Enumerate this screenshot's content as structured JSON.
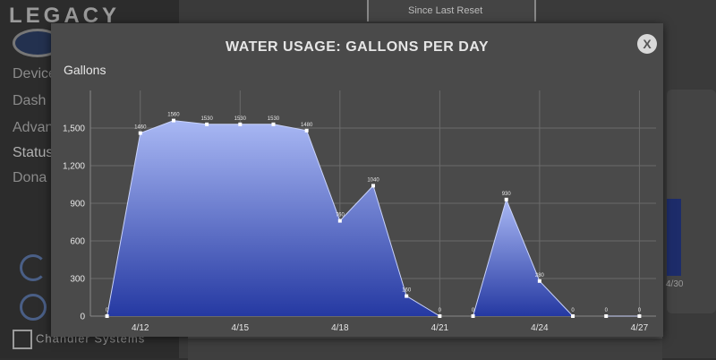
{
  "background": {
    "logo_text": "LEGACY",
    "nav": [
      "Device",
      "Dash",
      "Advan",
      "Status",
      "Dona"
    ],
    "header": "Since Last Reset",
    "right_label": "4/30",
    "brand": "Chandler Systems"
  },
  "modal": {
    "title": "WATER USAGE: GALLONS PER DAY",
    "close_label": "X",
    "yaxis_title": "Gallons"
  },
  "chart_data": {
    "type": "area",
    "ylabel": "Gallons",
    "ylim": [
      0,
      1800
    ],
    "yticks": [
      0,
      300,
      600,
      900,
      1200,
      1500
    ],
    "ytick_labels": [
      "0",
      "300",
      "600",
      "900",
      "1,200",
      "1,500"
    ],
    "xticks": [
      "4/12",
      "4/15",
      "4/18",
      "4/21",
      "4/24",
      "4/27"
    ],
    "xtick_positions": [
      12,
      15,
      18,
      21,
      24,
      27
    ],
    "x_range": [
      10.5,
      27.5
    ],
    "grid": true,
    "colors": {
      "area_top": "#a9b8f4",
      "area_bottom": "#2539a2",
      "grid": "#6a6a6a",
      "axis": "#888888"
    },
    "series": [
      {
        "segment": 1,
        "x": [
          11,
          12,
          13,
          14,
          15,
          16,
          17,
          18,
          19,
          20,
          21
        ],
        "values": [
          0,
          1460,
          1560,
          1530,
          1530,
          1530,
          1480,
          760,
          1040,
          160,
          0
        ],
        "labels": [
          "0",
          "1460",
          "1560",
          "1530",
          "1530",
          "1530",
          "1480",
          "760",
          "1040",
          "160",
          "0"
        ]
      },
      {
        "segment": 2,
        "x": [
          22,
          23,
          24,
          25
        ],
        "values": [
          0,
          930,
          280,
          0
        ],
        "labels": [
          "0",
          "930",
          "280",
          "0"
        ]
      },
      {
        "segment": 3,
        "x": [
          26,
          27
        ],
        "values": [
          0,
          0
        ],
        "labels": [
          "0",
          "0"
        ]
      }
    ]
  }
}
